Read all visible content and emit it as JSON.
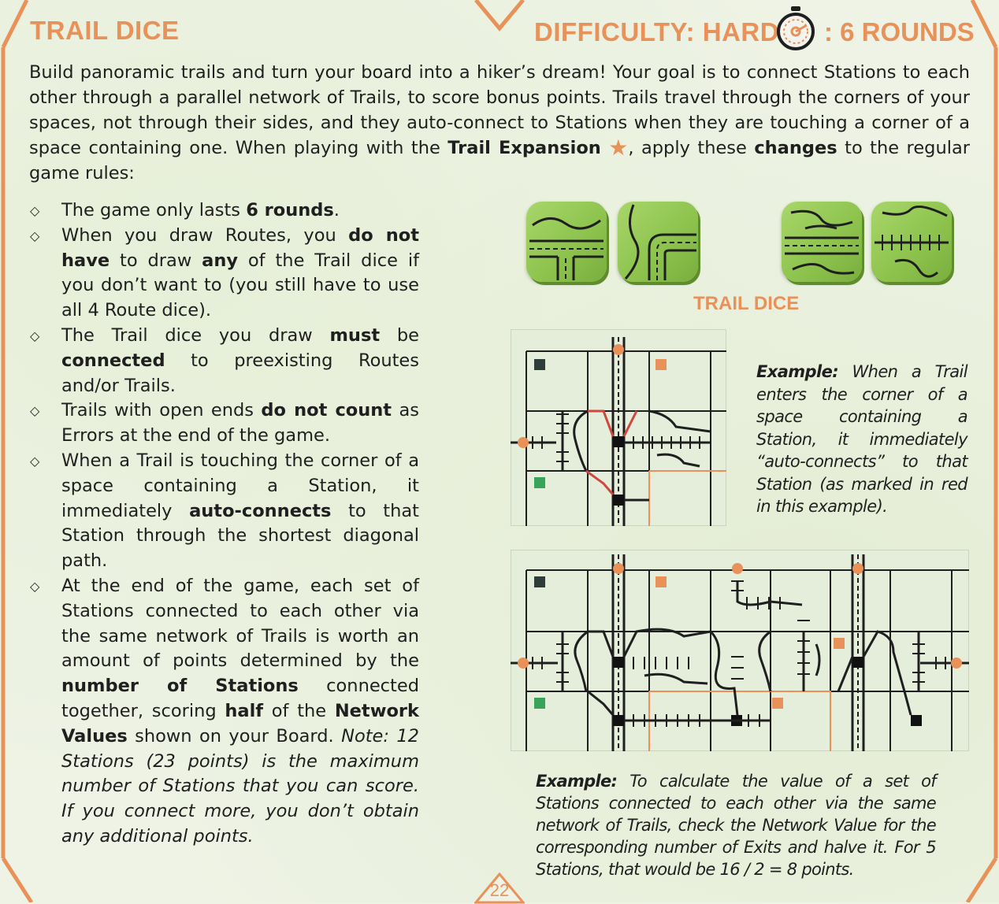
{
  "header": {
    "title": "TRAIL DICE",
    "difficulty": "DIFFICULTY: HARD",
    "rounds": ": 6 ROUNDS",
    "timer_icon": "stopwatch-icon"
  },
  "intro": {
    "part1": "Build panoramic trails and turn your board into a hiker’s dream! Your goal is to connect Stations to each other through a parallel network of Trails, to score bonus points. Trails travel through the corners of your spaces, not through their sides, and they auto-connect to Stations when they are touching a corner of a space containing one. When playing with the ",
    "bold1": "Trail Expansion",
    "part2": ", apply these ",
    "bold2": "changes",
    "part3": " to the regular game rules:",
    "star_icon": "star-icon"
  },
  "rules": {
    "r1": {
      "a": "The game only lasts ",
      "b": "6 rounds",
      "c": "."
    },
    "r2": {
      "a": "When you draw Routes, you ",
      "b": "do not have",
      "c": " to draw ",
      "d": "any",
      "e": " of the Trail dice if you don’t want to (you still have to use all 4 Route dice)."
    },
    "r3": {
      "a": "The Trail dice you draw ",
      "b": "must",
      "c": " be ",
      "d": "connected",
      "e": " to preexisting Routes and/or Trails."
    },
    "r4": {
      "a": "Trails with open ends ",
      "b": "do not count",
      "c": " as Errors at the end of the game."
    },
    "r5": {
      "a": "When a Trail is touching the corner of a space containing a Station, it immediately ",
      "b": "auto-connects",
      "c": " to that Station through the shortest diagonal path."
    },
    "r6": {
      "a": "At the end of the game, each set of Stations connected to each other via the same network of Trails is worth an amount of points determined by the ",
      "b": "number of Stations",
      "c": " connected together, scoring ",
      "d": "half",
      "e": " of the ",
      "f": "Network Values",
      "g": " shown on your Board. ",
      "h": "Note: 12 Stations (23 points) is the maximum number of Stations that you can score. If you connect more, you don’t obtain any additional points."
    }
  },
  "dice_caption": "TRAIL DICE",
  "example1": {
    "label": "Example:",
    "text": " When a Trail enters the corner of a space containing a Station, it immediately “auto-connects” to that Station (as marked in red in this example)."
  },
  "example2": {
    "label": "Example:",
    "text": " To calculate the value of a set of Stations connected to each other via the same network of Trails, check the Network Value for the corresponding number of Exits and halve it. For 5 Stations, that would be 16 / 2 = 8 points."
  },
  "page_number": "22",
  "colors": {
    "accent": "#e8925a",
    "die_green": "#8cc24c",
    "board_bg": "#e4eedb",
    "trail_red": "#d0473f"
  }
}
